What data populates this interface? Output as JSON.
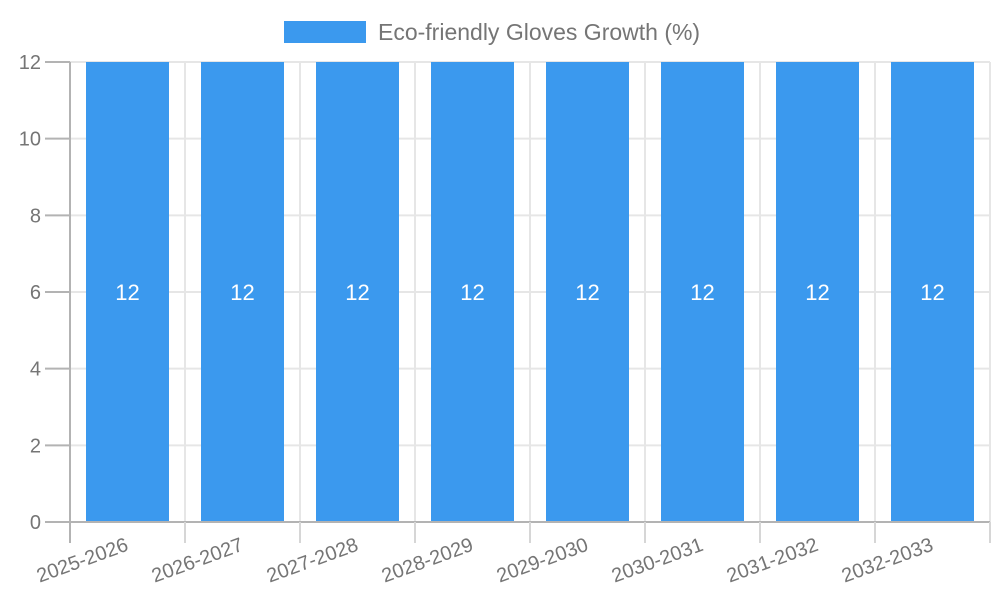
{
  "chart_data": {
    "type": "bar",
    "title": "",
    "legend_label": "Eco-friendly Gloves Growth (%)",
    "legend_position": "top-center",
    "categories": [
      "2025-2026",
      "2026-2027",
      "2027-2028",
      "2028-2029",
      "2029-2030",
      "2030-2031",
      "2031-2032",
      "2032-2033"
    ],
    "values": [
      12,
      12,
      12,
      12,
      12,
      12,
      12,
      12
    ],
    "show_value_labels": true,
    "xlabel": "",
    "ylabel": "",
    "ylim": [
      0,
      12
    ],
    "yticks": [
      0,
      2,
      4,
      6,
      8,
      10,
      12
    ],
    "grid": true,
    "x_label_rotation_deg": -20,
    "colors": {
      "bar": "#3b99ee",
      "grid": "#e6e6e6",
      "axis": "#b3b3b3",
      "outer_tick": "#d6d6d6",
      "axis_text": "#757575",
      "bar_label_text": "#ffffff",
      "legend_text": "#757575",
      "background": "#ffffff"
    }
  }
}
